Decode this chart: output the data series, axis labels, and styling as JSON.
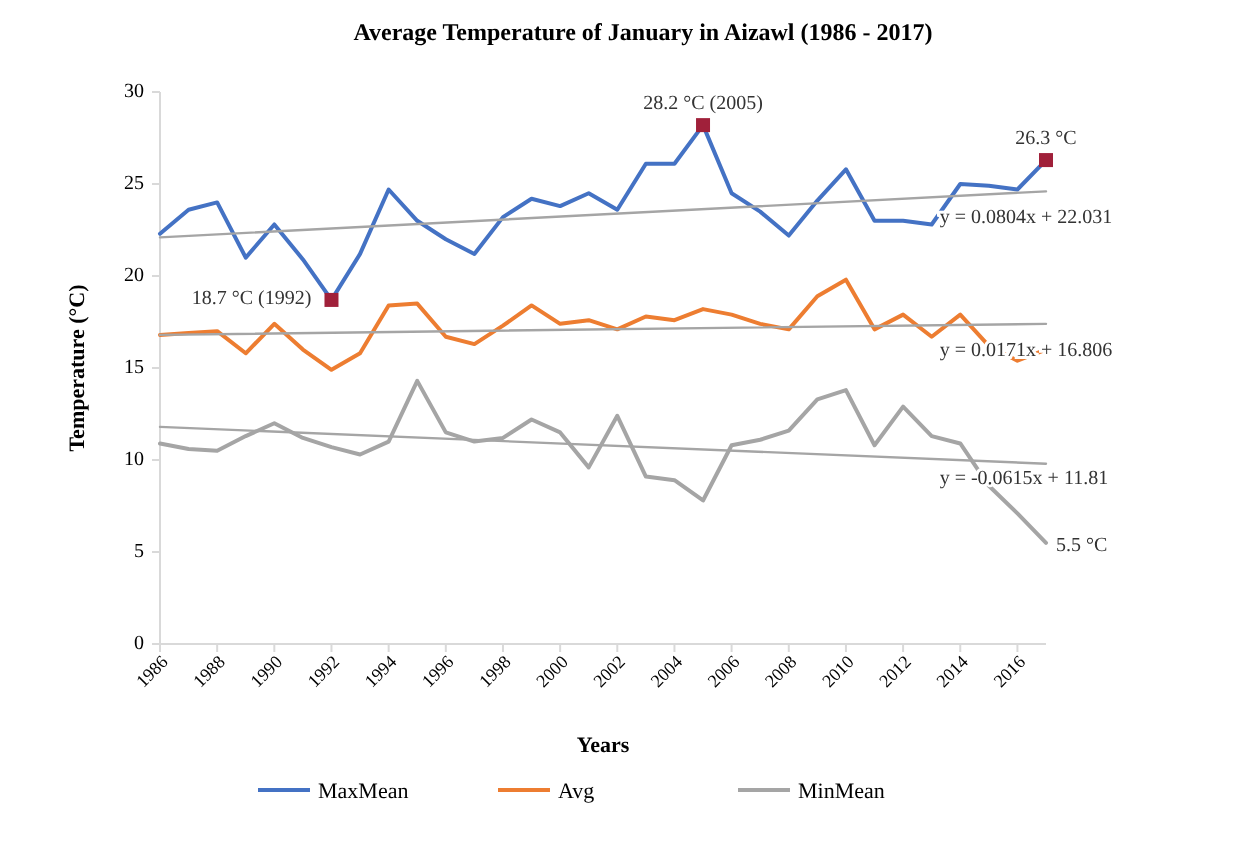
{
  "chart_data": {
    "type": "line",
    "title": "Average Temperature of January in Aizawl (1986 - 2017)",
    "xlabel": "Years",
    "ylabel": "Temperature (°C)",
    "x": [
      1986,
      1987,
      1988,
      1989,
      1990,
      1991,
      1992,
      1993,
      1994,
      1995,
      1996,
      1997,
      1998,
      1999,
      2000,
      2001,
      2002,
      2003,
      2004,
      2005,
      2006,
      2007,
      2008,
      2009,
      2010,
      2011,
      2012,
      2013,
      2014,
      2015,
      2016,
      2017
    ],
    "xlim": [
      1986,
      2017
    ],
    "xticks": [
      1986,
      1988,
      1990,
      1992,
      1994,
      1996,
      1998,
      2000,
      2002,
      2004,
      2006,
      2008,
      2010,
      2012,
      2014,
      2016
    ],
    "ylim": [
      0,
      30
    ],
    "yticks": [
      0,
      5,
      10,
      15,
      20,
      25,
      30
    ],
    "grid": false,
    "legend": "bottom",
    "marker": "none",
    "line_style": "solid",
    "series": [
      {
        "name": "MaxMean",
        "color": "#4472c4",
        "values": [
          22.3,
          23.6,
          24.0,
          21.0,
          22.8,
          20.9,
          18.7,
          21.2,
          24.7,
          23.0,
          22.0,
          21.2,
          23.2,
          24.2,
          23.8,
          24.5,
          23.6,
          26.1,
          26.1,
          28.2,
          24.5,
          23.5,
          22.2,
          24.1,
          25.8,
          23.0,
          23.0,
          22.8,
          25.0,
          24.9,
          24.7,
          26.3
        ]
      },
      {
        "name": "Avg",
        "color": "#ed7d31",
        "values": [
          16.8,
          16.9,
          17.0,
          15.8,
          17.4,
          16.0,
          14.9,
          15.8,
          18.4,
          18.5,
          16.7,
          16.3,
          17.3,
          18.4,
          17.4,
          17.6,
          17.1,
          17.8,
          17.6,
          18.2,
          17.9,
          17.4,
          17.1,
          18.9,
          19.8,
          17.1,
          17.9,
          16.7,
          17.9,
          16.2,
          15.4,
          16.0
        ]
      },
      {
        "name": "MinMean",
        "color": "#a5a5a5",
        "values": [
          10.9,
          10.6,
          10.5,
          11.3,
          12.0,
          11.2,
          10.7,
          10.3,
          11.0,
          14.3,
          11.5,
          11.0,
          11.2,
          12.2,
          11.5,
          9.6,
          12.4,
          9.1,
          8.9,
          7.8,
          10.8,
          11.1,
          11.6,
          13.3,
          13.8,
          10.8,
          12.9,
          11.3,
          10.9,
          8.6,
          7.1,
          5.5
        ]
      },
      {
        "type": "line",
        "color": "#a5a5a5",
        "x": [
          1986,
          2017
        ],
        "values": [
          22.1,
          24.6
        ]
      },
      {
        "type": "line",
        "color": "#a5a5a5",
        "x": [
          1986,
          2017
        ],
        "values": [
          16.8,
          17.4
        ]
      },
      {
        "type": "line",
        "color": "#a5a5a5",
        "x": [
          1986,
          2017
        ],
        "values": [
          11.8,
          9.8
        ]
      },
      {
        "type": "scatter",
        "marker": "square",
        "color": "#a0203a",
        "x": [
          1992,
          2005,
          2017
        ],
        "values": [
          18.7,
          28.2,
          26.3
        ]
      }
    ],
    "annotations": [
      {
        "text": "18.7 °C (1992)",
        "x": 1992,
        "y": 18.7
      },
      {
        "text": "28.2 °C (2005)",
        "x": 2005,
        "y": 28.2
      },
      {
        "text": "26.3 °C",
        "x": 2017,
        "y": 26.3
      },
      {
        "text": "5.5 °C",
        "x": 2017,
        "y": 5.5
      },
      {
        "text": "y = 0.0804x + 22.031",
        "x": 2013,
        "y": 24.3
      },
      {
        "text": "y = 0.0171x + 16.806",
        "x": 2013,
        "y": 17.3
      },
      {
        "text": "y = -0.0615x + 11.81",
        "x": 2013,
        "y": 10.1
      }
    ]
  }
}
